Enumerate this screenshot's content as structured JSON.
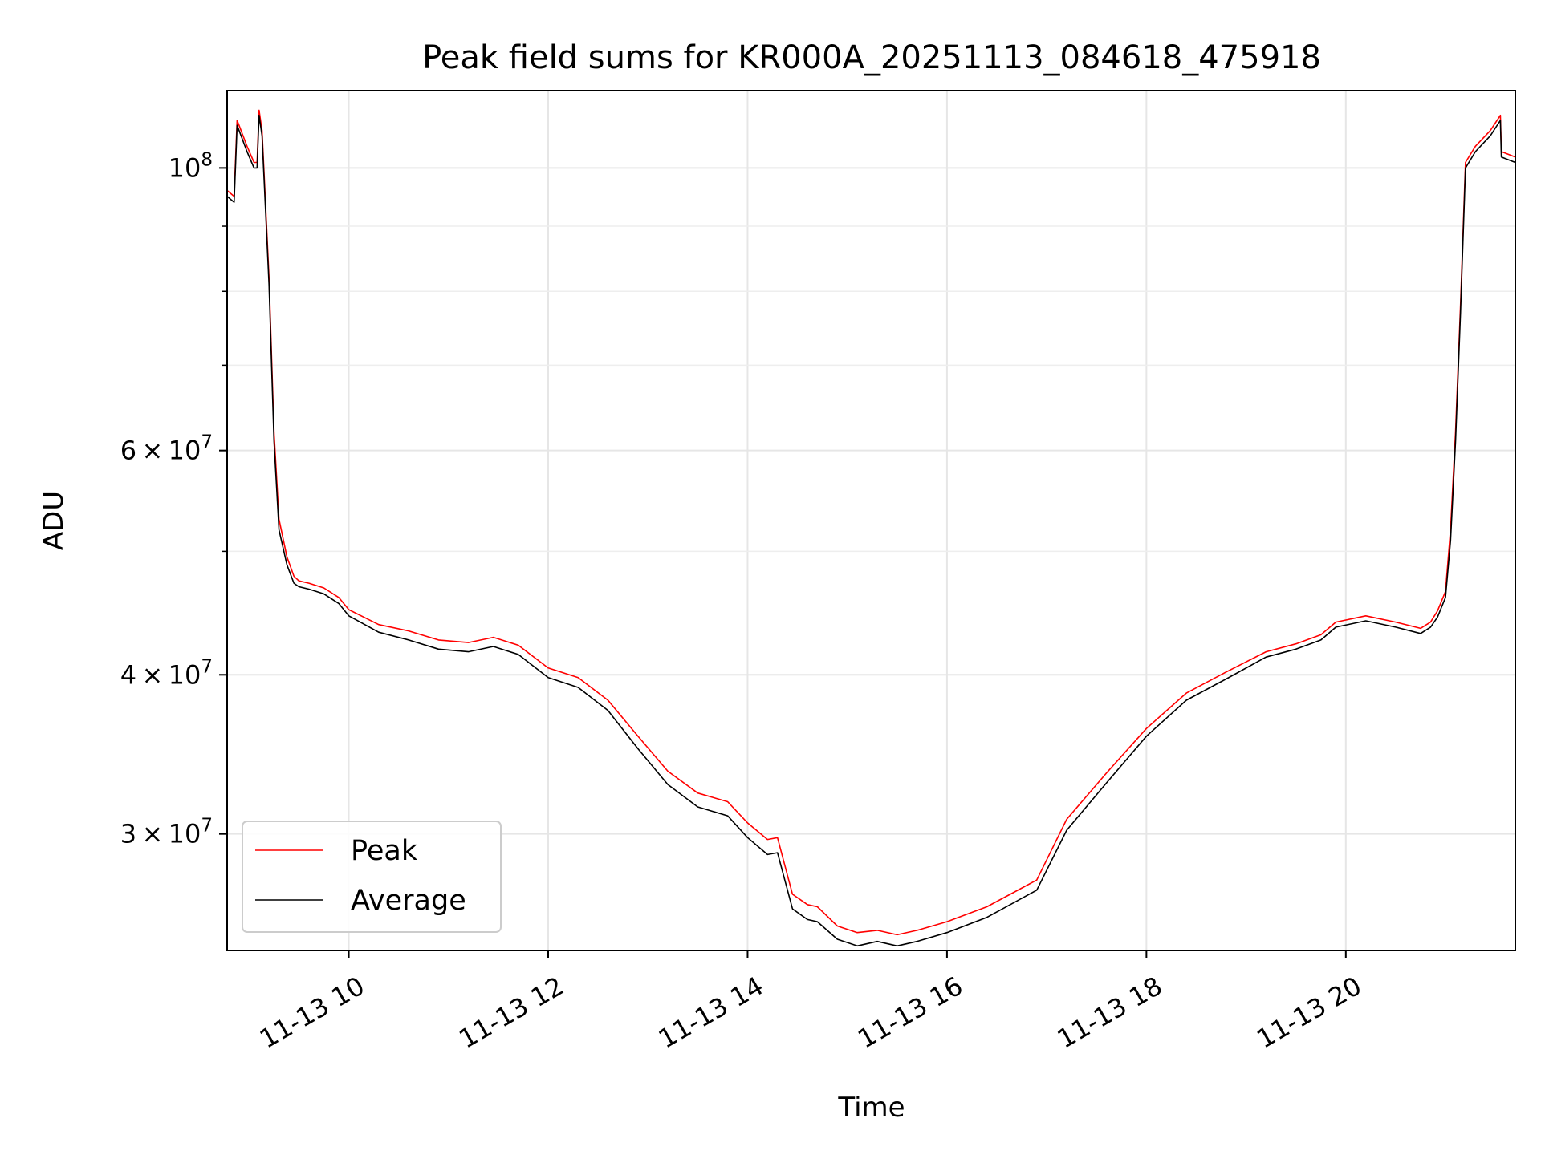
{
  "chart_data": {
    "type": "line",
    "title": "Peak field sums for KR000A_20251113_084618_475918",
    "xlabel": "Time",
    "ylabel": "ADU",
    "x_tick_labels": [
      "11-13 10",
      "11-13 12",
      "11-13 14",
      "11-13 16",
      "11-13 18",
      "11-13 20"
    ],
    "x_tick_hours": [
      10,
      12,
      14,
      16,
      18,
      20
    ],
    "y_tick_labels": [
      {
        "value": 30000000,
        "mantissa": "3",
        "exponent": "7"
      },
      {
        "value": 40000000,
        "mantissa": "4",
        "exponent": "7"
      },
      {
        "value": 60000000,
        "mantissa": "6",
        "exponent": "7"
      },
      {
        "value": 100000000,
        "mantissa": "",
        "exponent": "8"
      }
    ],
    "y_minor_ticks": [
      50000000,
      70000000,
      80000000,
      90000000
    ],
    "y_scale": "log",
    "grid": true,
    "legend_position": "lower left",
    "xlim_hours": [
      8.78,
      21.7
    ],
    "ylim": [
      24300000,
      115000000
    ],
    "series": [
      {
        "name": "Peak",
        "color": "#ff0000",
        "hours": [
          8.78,
          8.85,
          8.88,
          8.9,
          8.98,
          9.05,
          9.08,
          9.1,
          9.13,
          9.2,
          9.25,
          9.3,
          9.38,
          9.45,
          9.5,
          9.6,
          9.75,
          9.9,
          10.0,
          10.3,
          10.6,
          10.9,
          11.2,
          11.45,
          11.7,
          12.0,
          12.3,
          12.6,
          12.9,
          13.2,
          13.5,
          13.8,
          14.0,
          14.2,
          14.3,
          14.45,
          14.6,
          14.7,
          14.9,
          15.1,
          15.3,
          15.5,
          15.7,
          16.0,
          16.4,
          16.9,
          17.2,
          17.6,
          18.0,
          18.4,
          18.8,
          19.2,
          19.5,
          19.75,
          19.9,
          20.2,
          20.5,
          20.75,
          20.85,
          20.92,
          21.0,
          21.05,
          21.1,
          21.15,
          21.2,
          21.3,
          21.45,
          21.55,
          21.56,
          21.7
        ],
        "values": [
          96000000,
          95000000,
          109000000,
          108000000,
          104000000,
          101000000,
          101000000,
          111000000,
          107000000,
          82000000,
          62000000,
          53000000,
          49500000,
          47800000,
          47400000,
          47200000,
          46800000,
          46000000,
          45000000,
          43800000,
          43300000,
          42600000,
          42400000,
          42800000,
          42200000,
          40500000,
          39800000,
          38200000,
          35800000,
          33600000,
          32300000,
          31800000,
          30600000,
          29700000,
          29800000,
          26900000,
          26400000,
          26300000,
          25400000,
          25100000,
          25200000,
          25000000,
          25200000,
          25600000,
          26300000,
          27600000,
          30800000,
          33500000,
          36300000,
          38700000,
          40200000,
          41700000,
          42300000,
          43000000,
          44000000,
          44500000,
          44000000,
          43500000,
          44000000,
          44900000,
          46500000,
          52000000,
          62000000,
          78000000,
          101000000,
          104000000,
          107000000,
          110000000,
          103000000,
          102000000
        ]
      },
      {
        "name": "Average",
        "color": "#000000",
        "hours": [
          8.78,
          8.85,
          8.88,
          8.9,
          8.98,
          9.05,
          9.08,
          9.1,
          9.13,
          9.2,
          9.25,
          9.3,
          9.38,
          9.45,
          9.5,
          9.6,
          9.75,
          9.9,
          10.0,
          10.3,
          10.6,
          10.9,
          11.2,
          11.45,
          11.7,
          12.0,
          12.3,
          12.6,
          12.9,
          13.2,
          13.5,
          13.8,
          14.0,
          14.2,
          14.3,
          14.45,
          14.6,
          14.7,
          14.9,
          15.1,
          15.3,
          15.5,
          15.7,
          16.0,
          16.4,
          16.9,
          17.2,
          17.6,
          18.0,
          18.4,
          18.8,
          19.2,
          19.5,
          19.75,
          19.9,
          20.2,
          20.5,
          20.75,
          20.85,
          20.92,
          21.0,
          21.05,
          21.1,
          21.15,
          21.2,
          21.3,
          21.45,
          21.55,
          21.56,
          21.7
        ],
        "values": [
          95000000,
          94000000,
          108000000,
          107000000,
          103000000,
          100000000,
          100000000,
          110000000,
          106000000,
          81000000,
          61000000,
          52000000,
          48800000,
          47200000,
          46900000,
          46700000,
          46300000,
          45500000,
          44500000,
          43200000,
          42600000,
          41900000,
          41700000,
          42100000,
          41500000,
          39800000,
          39100000,
          37500000,
          35000000,
          32800000,
          31500000,
          31000000,
          29800000,
          28900000,
          29000000,
          26200000,
          25700000,
          25600000,
          24800000,
          24500000,
          24700000,
          24500000,
          24700000,
          25100000,
          25800000,
          27100000,
          30200000,
          32900000,
          35800000,
          38200000,
          39700000,
          41300000,
          41900000,
          42600000,
          43600000,
          44100000,
          43600000,
          43100000,
          43600000,
          44400000,
          46000000,
          51000000,
          61000000,
          77000000,
          100000000,
          103000000,
          106000000,
          109000000,
          102000000,
          101000000
        ]
      }
    ]
  }
}
